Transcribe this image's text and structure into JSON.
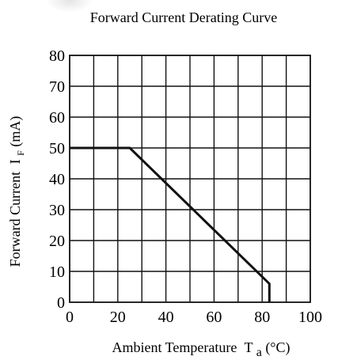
{
  "chart_data": {
    "type": "line",
    "title": "Forward Current Derating Curve",
    "xlabel": "Ambient Temperature",
    "xlabel_symbol": "T",
    "xlabel_sub": "a",
    "xlabel_unit": "(°C)",
    "ylabel": "Forward Current",
    "ylabel_symbol": "I",
    "ylabel_sub": "F",
    "ylabel_unit": "(mA)",
    "xlim": [
      0,
      100
    ],
    "ylim": [
      0,
      80
    ],
    "x_ticks": [
      0,
      20,
      40,
      60,
      80,
      100
    ],
    "y_ticks": [
      0,
      10,
      20,
      30,
      40,
      50,
      60,
      70,
      80
    ],
    "x_grid_step": 10,
    "y_grid_step": 10,
    "grid": true,
    "series": [
      {
        "x": [
          0,
          25,
          83,
          83
        ],
        "y": [
          50,
          50,
          6,
          0
        ],
        "color": "#111111"
      }
    ]
  }
}
